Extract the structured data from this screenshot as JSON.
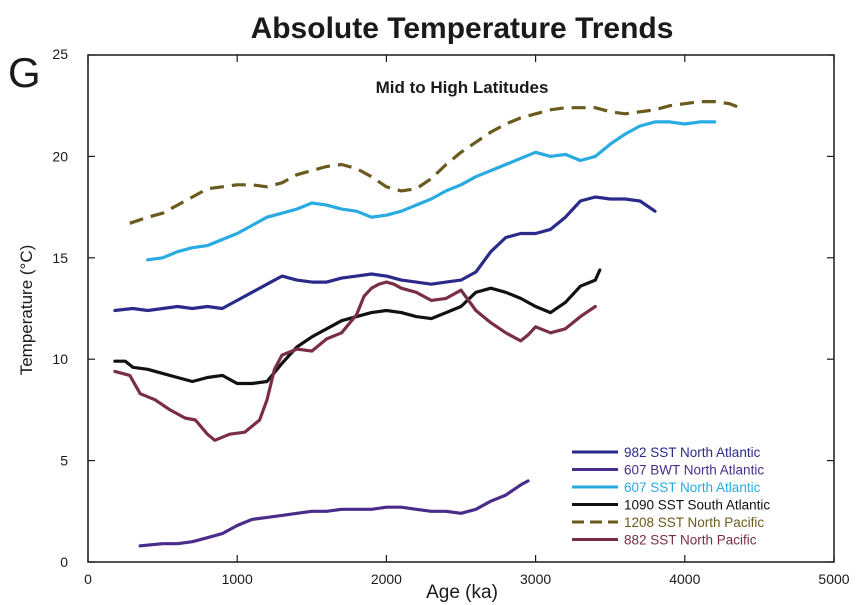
{
  "chart_data": {
    "type": "line",
    "title": "Absolute Temperature Trends",
    "panel_letter": "G",
    "subtitle": "Mid to High Latitudes",
    "xlabel": "Age (ka)",
    "ylabel": "Temperature (°C)",
    "xlim": [
      0,
      5000
    ],
    "ylim": [
      0,
      25
    ],
    "xticks": [
      0,
      1000,
      2000,
      3000,
      4000,
      5000
    ],
    "yticks": [
      0,
      5,
      10,
      15,
      20,
      25
    ],
    "grid": false,
    "legend_position": "bottom-right",
    "series": [
      {
        "name": "982 SST North Atlantic",
        "color": "#2a2a8a",
        "dash": false,
        "points": [
          [
            180,
            12.4
          ],
          [
            300,
            12.5
          ],
          [
            400,
            12.4
          ],
          [
            500,
            12.5
          ],
          [
            600,
            12.6
          ],
          [
            700,
            12.5
          ],
          [
            800,
            12.6
          ],
          [
            900,
            12.5
          ],
          [
            1000,
            12.9
          ],
          [
            1100,
            13.3
          ],
          [
            1200,
            13.7
          ],
          [
            1300,
            14.1
          ],
          [
            1400,
            13.9
          ],
          [
            1500,
            13.8
          ],
          [
            1600,
            13.8
          ],
          [
            1700,
            14.0
          ],
          [
            1800,
            14.1
          ],
          [
            1900,
            14.2
          ],
          [
            2000,
            14.1
          ],
          [
            2100,
            13.9
          ],
          [
            2200,
            13.8
          ],
          [
            2300,
            13.7
          ],
          [
            2400,
            13.8
          ],
          [
            2500,
            13.9
          ],
          [
            2600,
            14.3
          ],
          [
            2700,
            15.3
          ],
          [
            2800,
            16.0
          ],
          [
            2900,
            16.2
          ],
          [
            3000,
            16.2
          ],
          [
            3100,
            16.4
          ],
          [
            3200,
            17.0
          ],
          [
            3300,
            17.8
          ],
          [
            3400,
            18.0
          ],
          [
            3500,
            17.9
          ],
          [
            3600,
            17.9
          ],
          [
            3700,
            17.8
          ],
          [
            3800,
            17.3
          ]
        ]
      },
      {
        "name": "607 BWT North Atlantic",
        "color": "#4a2d8a",
        "dash": false,
        "points": [
          [
            350,
            0.8
          ],
          [
            500,
            0.9
          ],
          [
            600,
            0.9
          ],
          [
            700,
            1.0
          ],
          [
            800,
            1.2
          ],
          [
            900,
            1.4
          ],
          [
            1000,
            1.8
          ],
          [
            1100,
            2.1
          ],
          [
            1200,
            2.2
          ],
          [
            1300,
            2.3
          ],
          [
            1400,
            2.4
          ],
          [
            1500,
            2.5
          ],
          [
            1600,
            2.5
          ],
          [
            1700,
            2.6
          ],
          [
            1800,
            2.6
          ],
          [
            1900,
            2.6
          ],
          [
            2000,
            2.7
          ],
          [
            2100,
            2.7
          ],
          [
            2200,
            2.6
          ],
          [
            2300,
            2.5
          ],
          [
            2400,
            2.5
          ],
          [
            2500,
            2.4
          ],
          [
            2600,
            2.6
          ],
          [
            2700,
            3.0
          ],
          [
            2800,
            3.3
          ],
          [
            2900,
            3.8
          ],
          [
            2950,
            4.0
          ]
        ]
      },
      {
        "name": "607 SST North Atlantic",
        "color": "#29abe2",
        "dash": false,
        "points": [
          [
            400,
            14.9
          ],
          [
            500,
            15.0
          ],
          [
            600,
            15.3
          ],
          [
            700,
            15.5
          ],
          [
            800,
            15.6
          ],
          [
            900,
            15.9
          ],
          [
            1000,
            16.2
          ],
          [
            1100,
            16.6
          ],
          [
            1200,
            17.0
          ],
          [
            1300,
            17.2
          ],
          [
            1400,
            17.4
          ],
          [
            1500,
            17.7
          ],
          [
            1600,
            17.6
          ],
          [
            1700,
            17.4
          ],
          [
            1800,
            17.3
          ],
          [
            1900,
            17.0
          ],
          [
            2000,
            17.1
          ],
          [
            2100,
            17.3
          ],
          [
            2200,
            17.6
          ],
          [
            2300,
            17.9
          ],
          [
            2400,
            18.3
          ],
          [
            2500,
            18.6
          ],
          [
            2600,
            19.0
          ],
          [
            2700,
            19.3
          ],
          [
            2800,
            19.6
          ],
          [
            2900,
            19.9
          ],
          [
            3000,
            20.2
          ],
          [
            3100,
            20.0
          ],
          [
            3200,
            20.1
          ],
          [
            3300,
            19.8
          ],
          [
            3400,
            20.0
          ],
          [
            3500,
            20.6
          ],
          [
            3600,
            21.1
          ],
          [
            3700,
            21.5
          ],
          [
            3800,
            21.7
          ],
          [
            3900,
            21.7
          ],
          [
            4000,
            21.6
          ],
          [
            4100,
            21.7
          ],
          [
            4200,
            21.7
          ]
        ]
      },
      {
        "name": "1090 SST South Atlantic",
        "color": "#111111",
        "dash": false,
        "points": [
          [
            180,
            9.9
          ],
          [
            250,
            9.9
          ],
          [
            300,
            9.6
          ],
          [
            400,
            9.5
          ],
          [
            500,
            9.3
          ],
          [
            600,
            9.1
          ],
          [
            700,
            8.9
          ],
          [
            800,
            9.1
          ],
          [
            900,
            9.2
          ],
          [
            1000,
            8.8
          ],
          [
            1100,
            8.8
          ],
          [
            1200,
            8.9
          ],
          [
            1300,
            9.8
          ],
          [
            1400,
            10.6
          ],
          [
            1500,
            11.1
          ],
          [
            1600,
            11.5
          ],
          [
            1700,
            11.9
          ],
          [
            1800,
            12.1
          ],
          [
            1900,
            12.3
          ],
          [
            2000,
            12.4
          ],
          [
            2100,
            12.3
          ],
          [
            2200,
            12.1
          ],
          [
            2300,
            12.0
          ],
          [
            2400,
            12.3
          ],
          [
            2500,
            12.6
          ],
          [
            2600,
            13.3
          ],
          [
            2700,
            13.5
          ],
          [
            2800,
            13.3
          ],
          [
            2900,
            13.0
          ],
          [
            3000,
            12.6
          ],
          [
            3100,
            12.3
          ],
          [
            3200,
            12.8
          ],
          [
            3300,
            13.6
          ],
          [
            3400,
            13.9
          ],
          [
            3430,
            14.4
          ]
        ]
      },
      {
        "name": "1208 SST North Pacific",
        "color": "#6b5a1e",
        "dash": true,
        "points": [
          [
            280,
            16.7
          ],
          [
            400,
            17.0
          ],
          [
            500,
            17.2
          ],
          [
            600,
            17.6
          ],
          [
            700,
            18.0
          ],
          [
            800,
            18.4
          ],
          [
            900,
            18.5
          ],
          [
            1000,
            18.6
          ],
          [
            1100,
            18.6
          ],
          [
            1200,
            18.5
          ],
          [
            1300,
            18.7
          ],
          [
            1400,
            19.1
          ],
          [
            1500,
            19.3
          ],
          [
            1600,
            19.5
          ],
          [
            1700,
            19.6
          ],
          [
            1800,
            19.4
          ],
          [
            1900,
            19.0
          ],
          [
            2000,
            18.5
          ],
          [
            2100,
            18.3
          ],
          [
            2200,
            18.4
          ],
          [
            2300,
            18.9
          ],
          [
            2400,
            19.6
          ],
          [
            2500,
            20.2
          ],
          [
            2600,
            20.7
          ],
          [
            2700,
            21.2
          ],
          [
            2800,
            21.6
          ],
          [
            2900,
            21.9
          ],
          [
            3000,
            22.1
          ],
          [
            3100,
            22.3
          ],
          [
            3200,
            22.4
          ],
          [
            3300,
            22.4
          ],
          [
            3400,
            22.4
          ],
          [
            3500,
            22.2
          ],
          [
            3600,
            22.1
          ],
          [
            3700,
            22.2
          ],
          [
            3800,
            22.3
          ],
          [
            3900,
            22.5
          ],
          [
            4000,
            22.6
          ],
          [
            4100,
            22.7
          ],
          [
            4200,
            22.7
          ],
          [
            4300,
            22.6
          ],
          [
            4370,
            22.4
          ]
        ]
      },
      {
        "name": "882 SST North Pacific",
        "color": "#7a2e45",
        "dash": false,
        "points": [
          [
            180,
            9.4
          ],
          [
            280,
            9.2
          ],
          [
            350,
            8.3
          ],
          [
            450,
            8.0
          ],
          [
            550,
            7.5
          ],
          [
            650,
            7.1
          ],
          [
            720,
            7.0
          ],
          [
            800,
            6.3
          ],
          [
            850,
            6.0
          ],
          [
            950,
            6.3
          ],
          [
            1050,
            6.4
          ],
          [
            1150,
            7.0
          ],
          [
            1200,
            8.0
          ],
          [
            1250,
            9.5
          ],
          [
            1300,
            10.2
          ],
          [
            1400,
            10.5
          ],
          [
            1500,
            10.4
          ],
          [
            1600,
            11.0
          ],
          [
            1700,
            11.3
          ],
          [
            1800,
            12.2
          ],
          [
            1850,
            13.1
          ],
          [
            1900,
            13.5
          ],
          [
            1950,
            13.7
          ],
          [
            2000,
            13.8
          ],
          [
            2050,
            13.7
          ],
          [
            2100,
            13.5
          ],
          [
            2200,
            13.3
          ],
          [
            2300,
            12.9
          ],
          [
            2400,
            13.0
          ],
          [
            2500,
            13.4
          ],
          [
            2600,
            12.4
          ],
          [
            2700,
            11.8
          ],
          [
            2800,
            11.3
          ],
          [
            2900,
            10.9
          ],
          [
            2950,
            11.2
          ],
          [
            3000,
            11.6
          ],
          [
            3100,
            11.3
          ],
          [
            3200,
            11.5
          ],
          [
            3300,
            12.1
          ],
          [
            3400,
            12.6
          ]
        ]
      }
    ]
  }
}
